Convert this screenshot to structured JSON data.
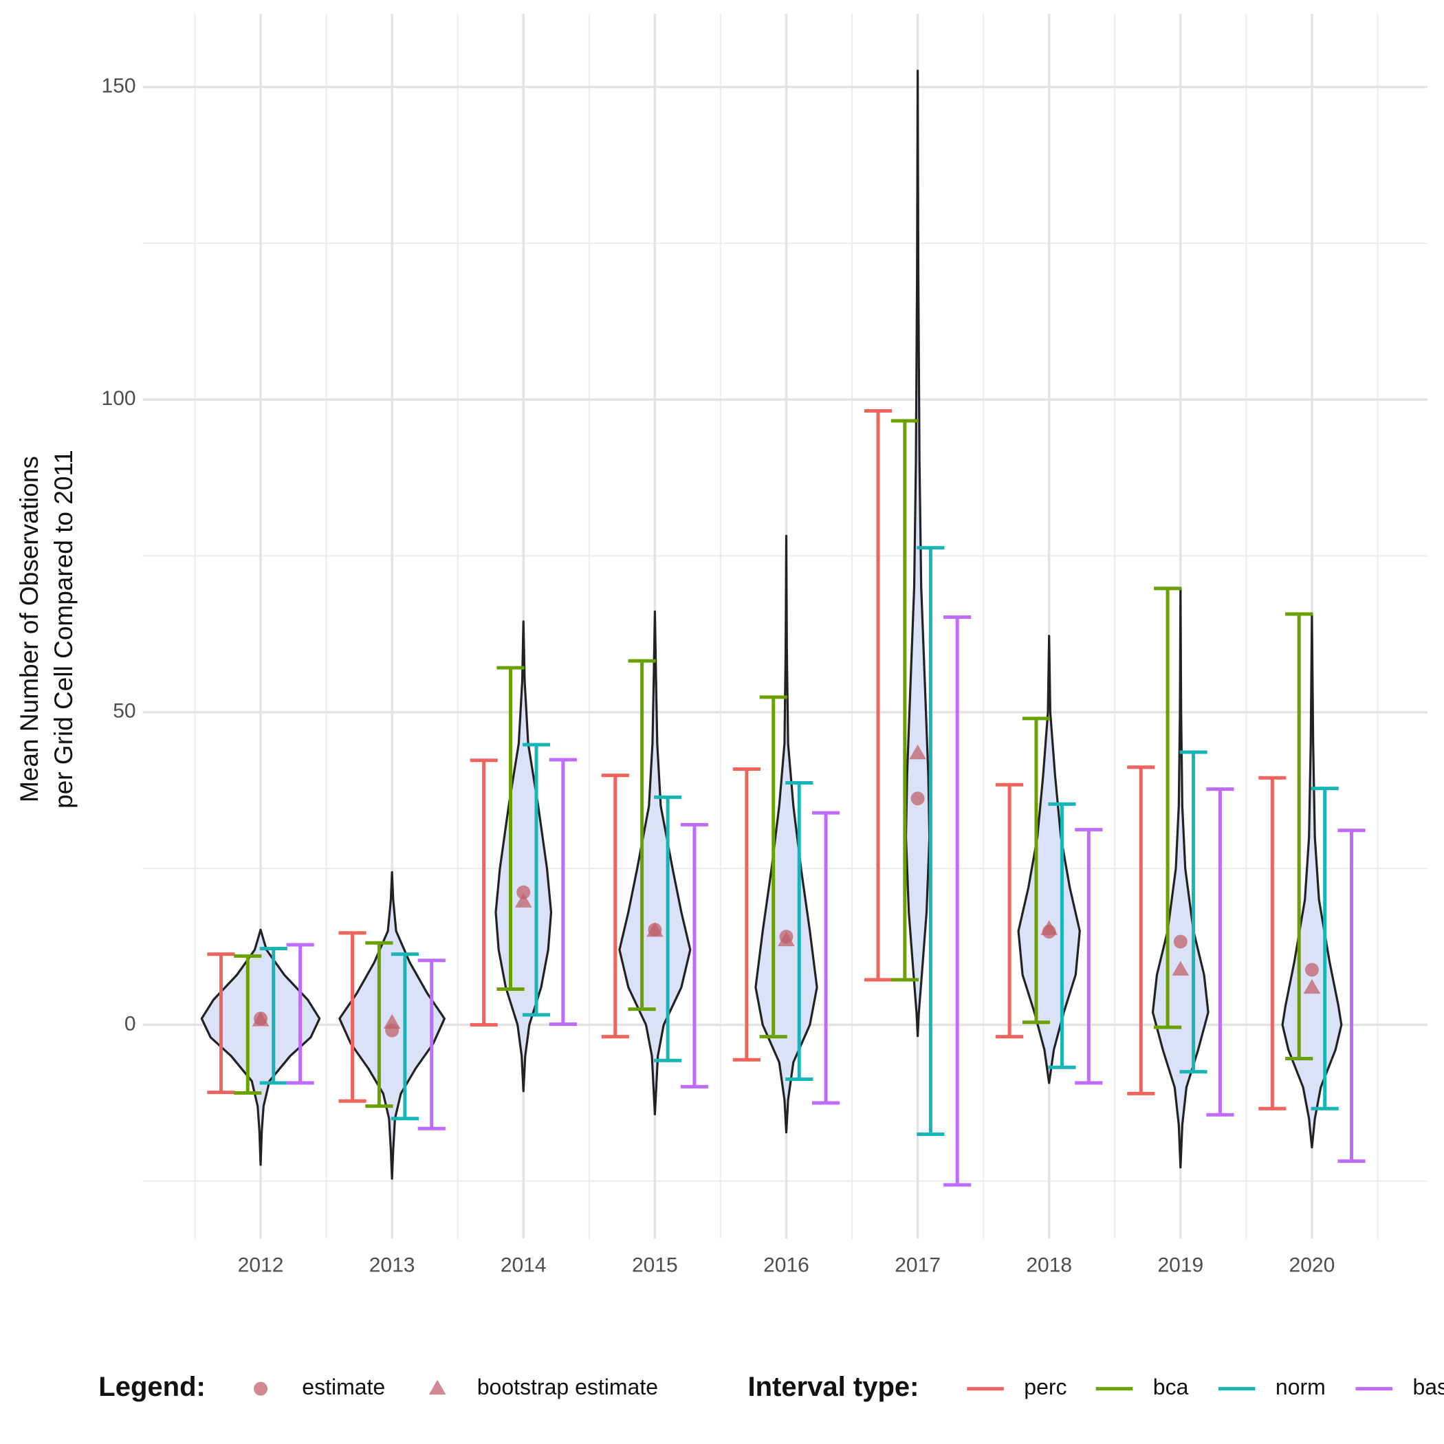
{
  "chart_data": {
    "type": "violin",
    "y_label": [
      "Mean Number of Observations",
      "per Grid Cell Compared to 2011"
    ],
    "categories": [
      "2012",
      "2013",
      "2014",
      "2015",
      "2016",
      "2017",
      "2018",
      "2019",
      "2020"
    ],
    "ylim": [
      -34.2,
      161.7
    ],
    "yticks": [
      0,
      50,
      100,
      150
    ],
    "minor_yticks": [
      -25,
      25,
      75,
      125
    ],
    "grid": true,
    "violin_fill": "#dbe2f7",
    "violin_stroke": "#222222",
    "violins": [
      {
        "y": [
          15.2,
          12,
          8,
          4,
          1,
          -2,
          -5,
          -9,
          -13,
          -17,
          -22.4
        ],
        "density": [
          0,
          0.1,
          0.4,
          0.8,
          1.0,
          0.85,
          0.5,
          0.15,
          0.05,
          0.02,
          0
        ]
      },
      {
        "y": [
          24.4,
          20,
          15,
          10,
          5,
          1,
          -3,
          -7,
          -11,
          -15,
          -20,
          -24.6
        ],
        "density": [
          0,
          0.02,
          0.07,
          0.3,
          0.6,
          0.89,
          0.7,
          0.4,
          0.15,
          0.05,
          0.02,
          0
        ]
      },
      {
        "y": [
          64.5,
          55,
          45,
          35,
          25,
          18,
          12,
          6,
          0,
          -5,
          -10.6
        ],
        "density": [
          0,
          0.02,
          0.08,
          0.25,
          0.4,
          0.47,
          0.42,
          0.3,
          0.1,
          0.03,
          0
        ]
      },
      {
        "y": [
          66.1,
          55,
          45,
          35,
          25,
          18,
          12,
          6,
          0,
          -5,
          -14.3
        ],
        "density": [
          0,
          0.02,
          0.04,
          0.1,
          0.3,
          0.45,
          0.6,
          0.45,
          0.15,
          0.05,
          0
        ]
      },
      {
        "y": [
          78.2,
          60,
          45,
          35,
          25,
          15,
          6,
          0,
          -6,
          -12,
          -17.2
        ],
        "density": [
          0,
          0.01,
          0.03,
          0.12,
          0.25,
          0.4,
          0.52,
          0.4,
          0.12,
          0.03,
          0
        ]
      },
      {
        "y": [
          152.6,
          120,
          90,
          70,
          55,
          40,
          30,
          18,
          8,
          2,
          -1.8
        ],
        "density": [
          0,
          0.01,
          0.03,
          0.06,
          0.12,
          0.18,
          0.2,
          0.15,
          0.07,
          0.02,
          0
        ]
      },
      {
        "y": [
          62.2,
          50,
          40,
          30,
          22,
          15,
          8,
          2,
          -4,
          -9.3
        ],
        "density": [
          0,
          0.02,
          0.1,
          0.2,
          0.35,
          0.52,
          0.45,
          0.25,
          0.08,
          0
        ]
      },
      {
        "y": [
          69.8,
          50,
          35,
          25,
          15,
          8,
          2,
          -4,
          -10,
          -16,
          -22.8
        ],
        "density": [
          0,
          0.01,
          0.03,
          0.08,
          0.22,
          0.4,
          0.47,
          0.3,
          0.1,
          0.03,
          0
        ]
      },
      {
        "y": [
          65.7,
          45,
          30,
          20,
          10,
          3,
          0,
          -4,
          -10,
          -15,
          -19.6
        ],
        "density": [
          0,
          0.02,
          0.05,
          0.12,
          0.3,
          0.45,
          0.5,
          0.4,
          0.15,
          0.05,
          0
        ]
      }
    ],
    "legend_title": "Legend:",
    "points_color": "#c0606c",
    "points": [
      {
        "name": "estimate",
        "shape": "circle",
        "values": [
          1.0,
          -0.9,
          21.2,
          15.2,
          14.1,
          36.2,
          14.9,
          13.3,
          8.8
        ]
      },
      {
        "name": "bootstrap estimate",
        "shape": "triangle",
        "values": [
          0.7,
          0.3,
          19.7,
          15.0,
          13.5,
          43.4,
          15.3,
          8.8,
          5.9
        ]
      }
    ],
    "interval_legend_title": "Interval type:",
    "series": [
      {
        "name": "perc",
        "color": "#f0645c",
        "upper": [
          11.3,
          14.7,
          42.3,
          39.9,
          40.9,
          98.2,
          38.4,
          41.2,
          39.5
        ],
        "lower": [
          -10.8,
          -12.2,
          0,
          -1.9,
          -5.6,
          7.2,
          -1.9,
          -11.0,
          -13.4
        ]
      },
      {
        "name": "bca",
        "color": "#6aa000",
        "upper": [
          11.0,
          13.1,
          57.1,
          58.2,
          52.4,
          96.6,
          49.0,
          69.8,
          65.7
        ],
        "lower": [
          -10.9,
          -13.0,
          5.7,
          2.5,
          -1.9,
          7.2,
          0.4,
          -0.4,
          -5.4
        ]
      },
      {
        "name": "norm",
        "color": "#18b5b8",
        "upper": [
          12.2,
          11.3,
          44.8,
          36.4,
          38.7,
          76.3,
          35.3,
          43.6,
          37.8
        ],
        "lower": [
          -9.3,
          -15.0,
          1.6,
          -5.7,
          -8.7,
          -17.5,
          -6.8,
          -7.5,
          -13.4
        ]
      },
      {
        "name": "basic",
        "color": "#bf6bff",
        "upper": [
          12.8,
          10.3,
          42.4,
          32.0,
          33.9,
          65.2,
          31.2,
          37.7,
          31.1
        ],
        "lower": [
          -9.3,
          -16.6,
          0.1,
          -9.9,
          -12.5,
          -25.6,
          -9.3,
          -14.4,
          -21.8
        ]
      }
    ]
  }
}
